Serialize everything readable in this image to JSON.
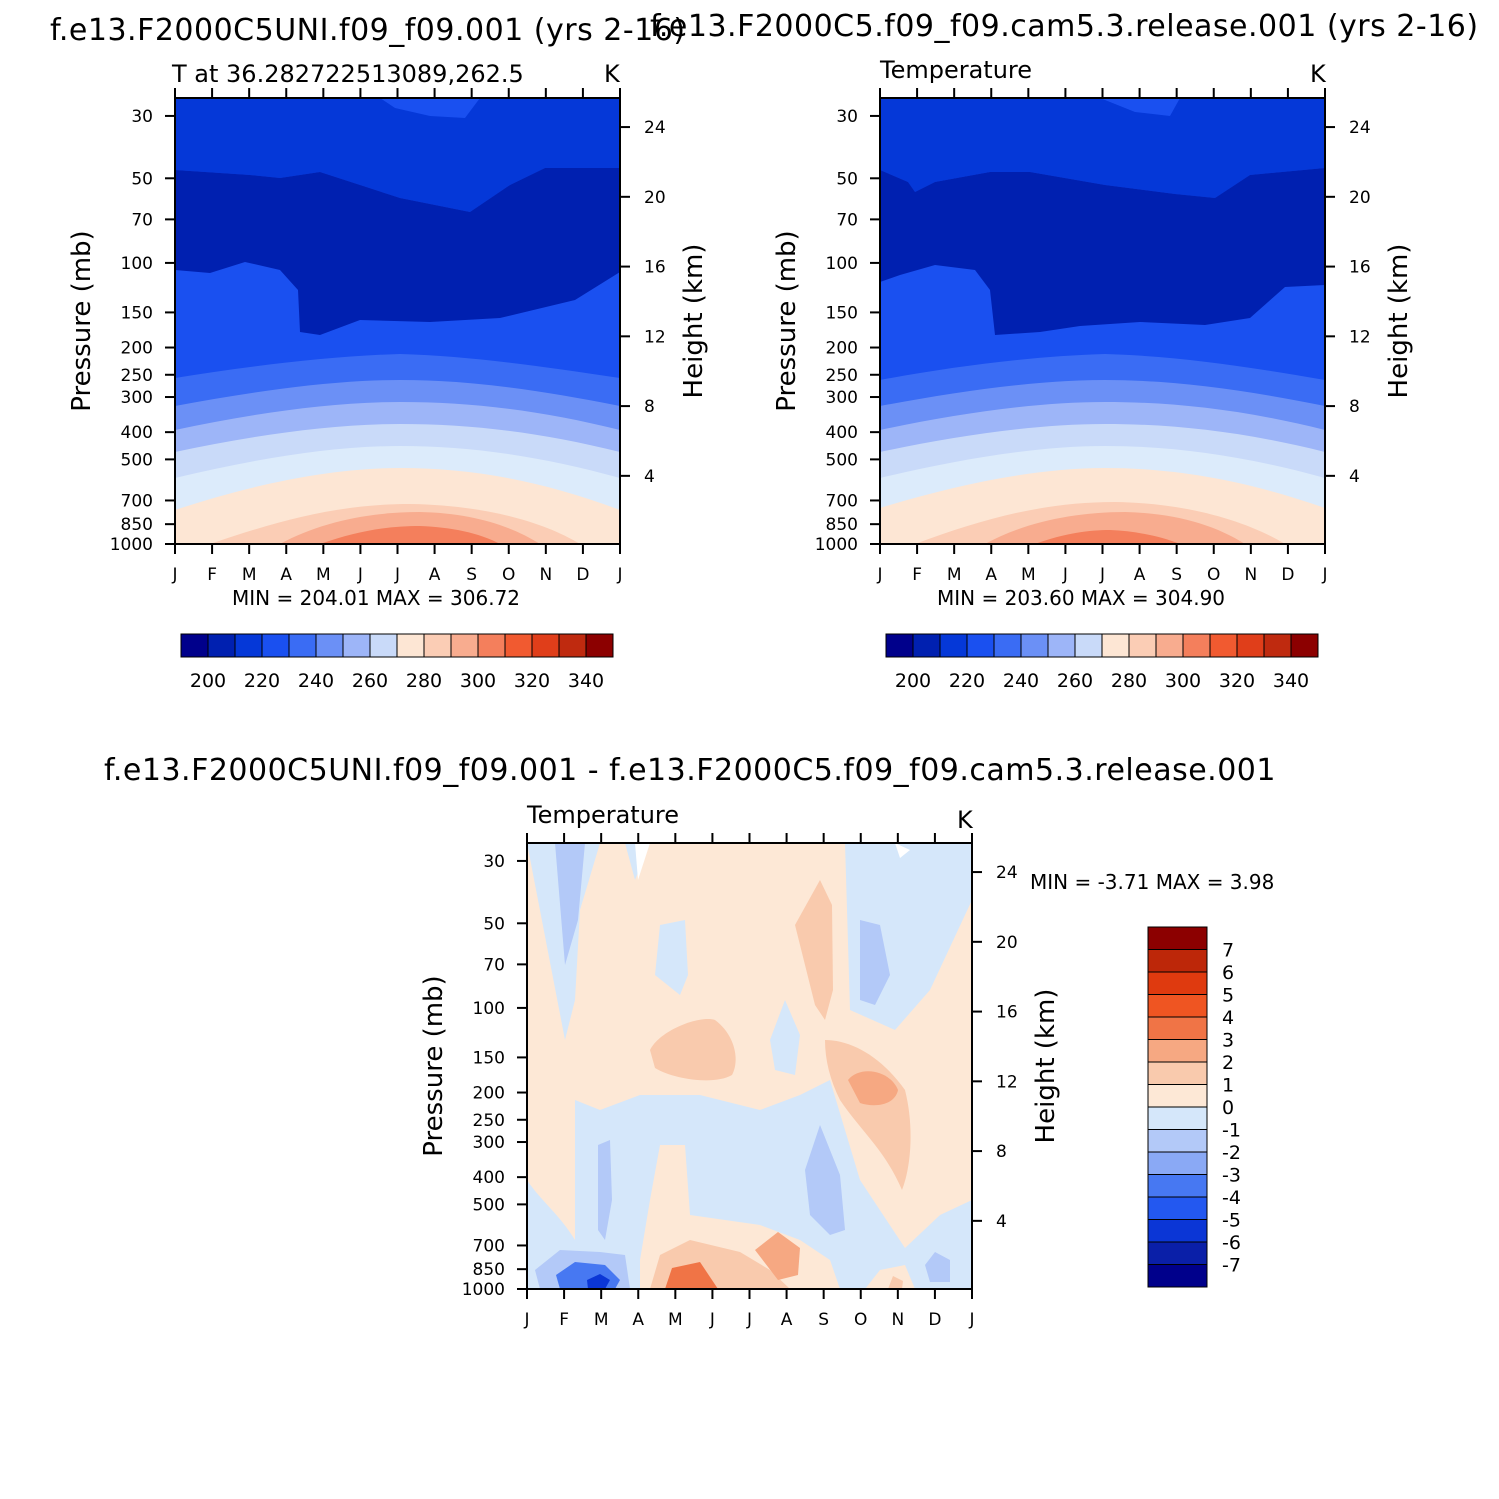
{
  "chart_data": [
    {
      "type": "contour",
      "title": "f.e13.F2000C5UNI.f09_f09.001 (yrs 2-16)",
      "left_label": "T at 36.282722513089,262.5",
      "units": "K",
      "xlabel": "",
      "ylabel": "Pressure (mb)",
      "y2label": "Height (km)",
      "x_ticks": [
        "J",
        "F",
        "M",
        "A",
        "M",
        "J",
        "J",
        "A",
        "S",
        "O",
        "N",
        "D",
        "J"
      ],
      "y_ticks": [
        "30",
        "50",
        "70",
        "100",
        "150",
        "200",
        "250",
        "300",
        "400",
        "500",
        "700",
        "850",
        "1000"
      ],
      "y2_ticks": [
        "24",
        "20",
        "16",
        "12",
        "8",
        "4"
      ],
      "stats_text": "MIN = 204.01  MAX = 306.72",
      "min": 204.01,
      "max": 306.72,
      "colorbar": {
        "levels": [
          200,
          210,
          220,
          230,
          240,
          250,
          260,
          270,
          280,
          290,
          300,
          310,
          320,
          330,
          340
        ],
        "labels": [
          "200",
          "220",
          "240",
          "260",
          "280",
          "300",
          "320",
          "340"
        ]
      }
    },
    {
      "type": "contour",
      "title": "f.e13.F2000C5.f09_f09.cam5.3.release.001 (yrs 2-16)",
      "left_label": "Temperature",
      "units": "K",
      "ylabel": "Pressure (mb)",
      "y2label": "Height (km)",
      "x_ticks": [
        "J",
        "F",
        "M",
        "A",
        "M",
        "J",
        "J",
        "A",
        "S",
        "O",
        "N",
        "D",
        "J"
      ],
      "y_ticks": [
        "30",
        "50",
        "70",
        "100",
        "150",
        "200",
        "250",
        "300",
        "400",
        "500",
        "700",
        "850",
        "1000"
      ],
      "y2_ticks": [
        "24",
        "20",
        "16",
        "12",
        "8",
        "4"
      ],
      "stats_text": "MIN = 203.60  MAX = 304.90",
      "min": 203.6,
      "max": 304.9,
      "colorbar": {
        "levels": [
          200,
          210,
          220,
          230,
          240,
          250,
          260,
          270,
          280,
          290,
          300,
          310,
          320,
          330,
          340
        ],
        "labels": [
          "200",
          "220",
          "240",
          "260",
          "280",
          "300",
          "320",
          "340"
        ]
      }
    },
    {
      "type": "contour",
      "title": "f.e13.F2000C5UNI.f09_f09.001 - f.e13.F2000C5.f09_f09.cam5.3.release.001",
      "left_label": "Temperature",
      "units": "K",
      "ylabel": "Pressure (mb)",
      "y2label": "Height (km)",
      "x_ticks": [
        "J",
        "F",
        "M",
        "A",
        "M",
        "J",
        "J",
        "A",
        "S",
        "O",
        "N",
        "D",
        "J"
      ],
      "y_ticks": [
        "30",
        "50",
        "70",
        "100",
        "150",
        "200",
        "250",
        "300",
        "400",
        "500",
        "700",
        "850",
        "1000"
      ],
      "y2_ticks": [
        "24",
        "20",
        "16",
        "12",
        "8",
        "4"
      ],
      "stats_text": "MIN =   -3.71  MAX =     3.98",
      "min": -3.71,
      "max": 3.98,
      "colorbar": {
        "levels": [
          -7,
          -6,
          -5,
          -4,
          -3,
          -2,
          -1,
          0,
          1,
          2,
          3,
          4,
          5,
          6,
          7
        ],
        "labels": [
          "7",
          "6",
          "5",
          "4",
          "3",
          "2",
          "1",
          "0",
          "-1",
          "-2",
          "-3",
          "-4",
          "-5",
          "-6",
          "-7"
        ]
      }
    }
  ],
  "palette": [
    "#00008b",
    "#0020b0",
    "#0538d8",
    "#1a50f0",
    "#3a6cf4",
    "#6b90f6",
    "#9db5f8",
    "#c9daf9",
    "#dcebfb",
    "#fde6d4",
    "#fbcdb5",
    "#f8ac8f",
    "#f47f5c",
    "#f15a30",
    "#e03e1a",
    "#bf2a0f",
    "#8c0000"
  ],
  "diff_palette": {
    "m7": "#00008b",
    "m6": "#0a1fa8",
    "m5": "#0b36d6",
    "m4": "#2358f0",
    "m3": "#4778f2",
    "m2": "#8aa9f5",
    "m1": "#b3c9f8",
    "z": "#d5e7fa",
    "p1": "#fde8d6",
    "p2": "#f9caad",
    "p3": "#f6a882",
    "p4": "#f07446",
    "p5": "#ef5522",
    "p6": "#df3a0f",
    "p7": "#bd2709",
    "p8": "#8c0000"
  }
}
